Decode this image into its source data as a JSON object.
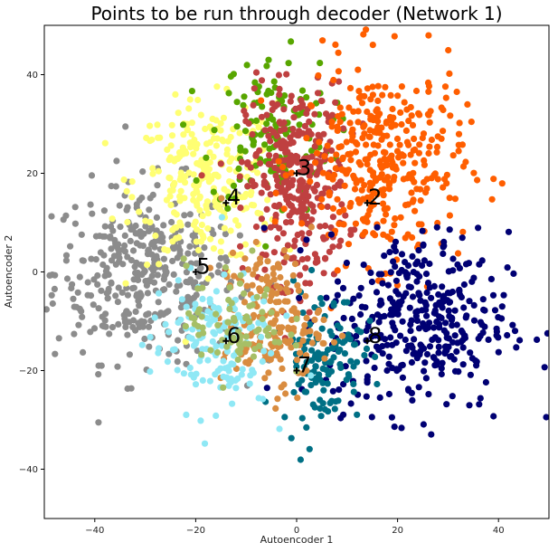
{
  "chart_data": {
    "type": "scatter",
    "title": "Points to be run through decoder (Network 1)",
    "xlabel": "Autoencoder 1",
    "ylabel": "Autoencoder 2",
    "xlim": [
      -50,
      50
    ],
    "ylim": [
      -50,
      50
    ],
    "xticks": [
      -40,
      -20,
      0,
      20,
      40
    ],
    "yticks": [
      -40,
      -20,
      0,
      20,
      40
    ],
    "grid": false,
    "clusters": [
      {
        "color": "#8c8c8c",
        "center": [
          -30,
          0
        ],
        "spread": [
          9,
          9
        ],
        "count": 380
      },
      {
        "color": "#ffff73",
        "center": [
          -18,
          18
        ],
        "spread": [
          7,
          8
        ],
        "count": 260
      },
      {
        "color": "#58a600",
        "center": [
          -5,
          28
        ],
        "spread": [
          6,
          8
        ],
        "count": 140
      },
      {
        "color": "#bf4040",
        "center": [
          0,
          18
        ],
        "spread": [
          5,
          10
        ],
        "count": 330
      },
      {
        "color": "#ff5e00",
        "center": [
          17,
          22
        ],
        "spread": [
          8,
          10
        ],
        "count": 360
      },
      {
        "color": "#000073",
        "center": [
          24,
          -10
        ],
        "spread": [
          9,
          9
        ],
        "count": 380
      },
      {
        "color": "#007085",
        "center": [
          5,
          -17
        ],
        "spread": [
          4,
          7
        ],
        "count": 130
      },
      {
        "color": "#d98c40",
        "center": [
          -5,
          -10
        ],
        "spread": [
          5,
          7
        ],
        "count": 180
      },
      {
        "color": "#8fe8f5",
        "center": [
          -17,
          -14
        ],
        "spread": [
          6,
          7
        ],
        "count": 150
      },
      {
        "color": "#a6bf66",
        "center": [
          -12,
          -10
        ],
        "spread": [
          5,
          6
        ],
        "count": 80
      }
    ],
    "markers": [
      {
        "label": "3",
        "x": 0,
        "y": 20
      },
      {
        "label": "4",
        "x": -14,
        "y": 14
      },
      {
        "label": "2",
        "x": 14,
        "y": 14
      },
      {
        "label": "5",
        "x": -20,
        "y": 0
      },
      {
        "label": "6",
        "x": -14,
        "y": -14
      },
      {
        "label": "8",
        "x": 14,
        "y": -14
      },
      {
        "label": "7",
        "x": 0,
        "y": -20
      }
    ]
  }
}
